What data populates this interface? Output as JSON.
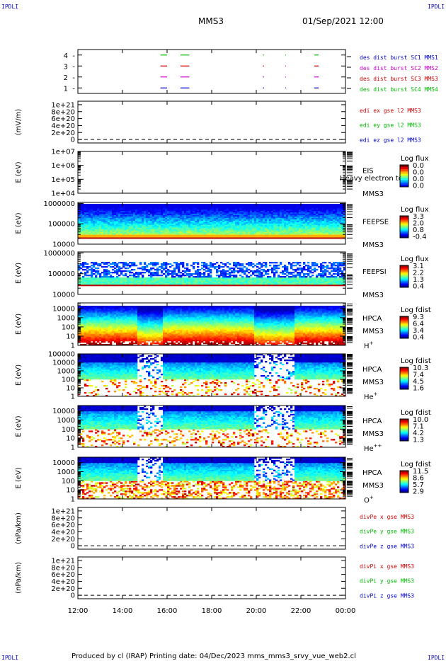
{
  "header": {
    "corner_left": "IPDLI",
    "corner_right": "IPDLI",
    "title": "MMS3",
    "datetime": "01/Sep/2021 12:00"
  },
  "footer": {
    "text": "Produced by cl (IRAP)   Printing date: 04/Dec/2023   mms_mms3_srvy_vue_web2.cl",
    "corner_left": "IPDLI",
    "corner_right": "IPDLI"
  },
  "colors": {
    "mms1": "#0000cc",
    "mms2": "#cc00cc",
    "mms3": "#cc0000",
    "mms4": "#00bb00"
  },
  "chart_data": {
    "type": "multi-panel time series",
    "x": {
      "ticks": [
        "12:00",
        "14:00",
        "16:00",
        "18:00",
        "20:00",
        "22:00",
        "00:00"
      ],
      "range_hours": [
        12,
        24
      ]
    },
    "panels": [
      {
        "id": "burst",
        "kind": "intervals",
        "ylim": [
          0.5,
          4.5
        ],
        "yticks": [
          "1",
          "2",
          "3",
          "4"
        ],
        "intervals_hours": [
          [
            15.7,
            16.0
          ],
          [
            16.6,
            17.0
          ],
          [
            20.3,
            20.35
          ],
          [
            21.3,
            21.33
          ],
          [
            22.6,
            22.8
          ]
        ],
        "legend": [
          {
            "label": "des dist burst SC1 MMS1",
            "color": "#0000cc",
            "row": 1
          },
          {
            "label": "des dist burst SC2 MMS2",
            "color": "#cc00cc",
            "row": 2
          },
          {
            "label": "des dist burst SC3 MMS3",
            "color": "#cc0000",
            "row": 3
          },
          {
            "label": "des dist burst SC4 MMS4",
            "color": "#00bb00",
            "row": 4
          }
        ]
      },
      {
        "id": "edi",
        "kind": "line",
        "ylabel": "(mV/m)",
        "yticks": [
          "0",
          "2e+20",
          "4e+20",
          "6e+20",
          "8e+20",
          "1e+21"
        ],
        "ytick_values": [
          0,
          2e+20,
          4e+20,
          6e+20,
          8e+20,
          1e+21
        ],
        "ylim": [
          -1e+20,
          1.1e+21
        ],
        "legend": [
          {
            "label": "edi ex gse l2 MMS3",
            "color": "#cc0000"
          },
          {
            "label": "edi ey gse l2 MMS3",
            "color": "#00bb00"
          },
          {
            "label": "edi ez gse l2 MMS3",
            "color": "#0000cc"
          }
        ]
      },
      {
        "id": "eis",
        "kind": "spectrogram",
        "ylabel": "E (eV)",
        "yticks": [
          "1e+04",
          "1e+05",
          "1e+06",
          "1e+07"
        ],
        "ytick_exp": [
          4,
          5,
          6,
          7
        ],
        "ylog": [
          4,
          7
        ],
        "right_label_1": "EIS",
        "right_label_2": "MMS3",
        "right_note": "Heavy electron to",
        "colorbar": {
          "title": "Log flux",
          "values": [
            "0.0",
            "0.0",
            "0.0",
            "0.0"
          ]
        },
        "empty": true
      },
      {
        "id": "feepse",
        "kind": "spectrogram",
        "ylabel": "E (eV)",
        "yticks": [
          "10000",
          "100000",
          "1000000"
        ],
        "ytick_exp": [
          4,
          5,
          6
        ],
        "ylog": [
          4,
          6.05
        ],
        "right_label_1": "FEEPSE",
        "right_label_2": "MMS3",
        "colorbar": {
          "title": "Log flux",
          "values": [
            "3.3",
            "2.0",
            "0.8",
            "-0.4"
          ]
        },
        "style": "feepse"
      },
      {
        "id": "feepsi",
        "kind": "spectrogram",
        "ylabel": "E (eV)",
        "yticks": [
          "10000",
          "100000",
          "1000000"
        ],
        "ytick_exp": [
          4,
          5,
          6
        ],
        "ylog": [
          4,
          6.05
        ],
        "right_label_1": "FEEPSI",
        "right_label_2": "MMS3",
        "colorbar": {
          "title": "Log flux",
          "values": [
            "3.1",
            "2.2",
            "1.3",
            "0.4"
          ]
        },
        "style": "feepsi"
      },
      {
        "id": "hpca_h",
        "kind": "spectrogram",
        "ylabel": "E (eV)",
        "yticks": [
          "1",
          "10",
          "100",
          "1000",
          "10000"
        ],
        "ytick_exp": [
          0,
          1,
          2,
          3,
          4
        ],
        "ylog": [
          0,
          4.6
        ],
        "right_label_1": "HPCA",
        "right_label_2": "MMS3",
        "species": "H",
        "species_sup": "+",
        "colorbar": {
          "title": "Log fdist",
          "values": [
            "9.3",
            "6.4",
            "3.4",
            "0.4"
          ]
        },
        "style": "h"
      },
      {
        "id": "hpca_he",
        "kind": "spectrogram",
        "ylabel": "E (eV)",
        "yticks": [
          "1",
          "10",
          "100",
          "1000",
          "10000",
          "100000"
        ],
        "ytick_exp": [
          0,
          1,
          2,
          3,
          4,
          5
        ],
        "ylog": [
          0,
          5
        ],
        "right_label_1": "HPCA",
        "right_label_2": "MMS3",
        "species": "He",
        "species_sup": "+",
        "colorbar": {
          "title": "Log fdist",
          "values": [
            "10.3",
            "7.4",
            "4.5",
            "1.6"
          ]
        },
        "style": "he"
      },
      {
        "id": "hpca_hepp",
        "kind": "spectrogram",
        "ylabel": "E (eV)",
        "yticks": [
          "1",
          "10",
          "100",
          "1000",
          "10000"
        ],
        "ytick_exp": [
          0,
          1,
          2,
          3,
          4
        ],
        "ylog": [
          0,
          4.6
        ],
        "right_label_1": "HPCA",
        "right_label_2": "MMS3",
        "species": "He",
        "species_sup": "++",
        "colorbar": {
          "title": "Log fdist",
          "values": [
            "10.0",
            "7.1",
            "4.2",
            "1.3"
          ]
        },
        "style": "hepp"
      },
      {
        "id": "hpca_o",
        "kind": "spectrogram",
        "ylabel": "E (eV)",
        "yticks": [
          "1",
          "10",
          "100",
          "1000",
          "10000"
        ],
        "ytick_exp": [
          0,
          1,
          2,
          3,
          4
        ],
        "ylog": [
          0,
          4.6
        ],
        "right_label_1": "HPCA",
        "right_label_2": "MMS3",
        "species": "O",
        "species_sup": "+",
        "colorbar": {
          "title": "Log fdist",
          "values": [
            "11.5",
            "8.6",
            "5.7",
            "2.9"
          ]
        },
        "style": "o"
      },
      {
        "id": "divpe",
        "kind": "line",
        "ylabel": "(nPa/km)",
        "yticks": [
          "0",
          "2e+20",
          "4e+20",
          "6e+20",
          "8e+20",
          "1e+21"
        ],
        "ytick_values": [
          0,
          2e+20,
          4e+20,
          6e+20,
          8e+20,
          1e+21
        ],
        "ylim": [
          -1e+20,
          1.1e+21
        ],
        "legend": [
          {
            "label": "divPe x gse MMS3",
            "color": "#cc0000"
          },
          {
            "label": "divPe y gse MMS3",
            "color": "#00bb00"
          },
          {
            "label": "divPe z gse MMS3",
            "color": "#0000cc"
          }
        ]
      },
      {
        "id": "divpi",
        "kind": "line",
        "ylabel": "(nPa/km)",
        "yticks": [
          "0",
          "2e+20",
          "4e+20",
          "6e+20",
          "8e+20",
          "1e+21"
        ],
        "ytick_values": [
          0,
          2e+20,
          4e+20,
          6e+20,
          8e+20,
          1e+21
        ],
        "ylim": [
          -1e+20,
          1.1e+21
        ],
        "legend": [
          {
            "label": "divPi x gse MMS3",
            "color": "#cc0000"
          },
          {
            "label": "divPi y gse MMS3",
            "color": "#00bb00"
          },
          {
            "label": "divPi z gse MMS3",
            "color": "#0000cc"
          }
        ]
      }
    ]
  }
}
